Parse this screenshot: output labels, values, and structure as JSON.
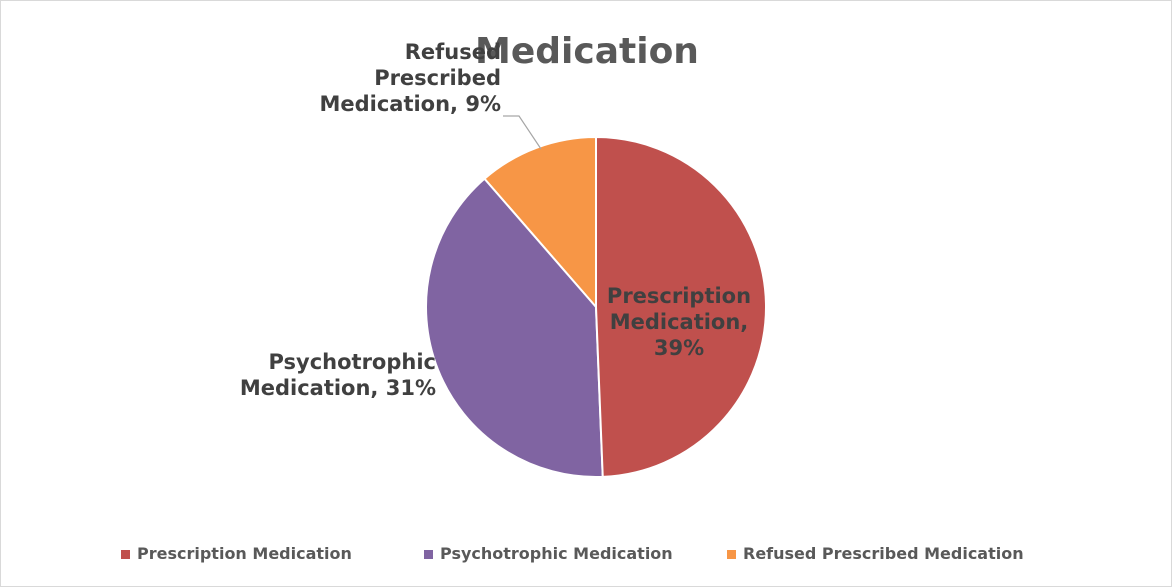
{
  "chart_data": {
    "type": "pie",
    "title": "Medication",
    "categories": [
      "Prescription Medication",
      "Psychotrophic Medication",
      "Refused Prescribed Medication"
    ],
    "values": [
      39,
      31,
      9
    ],
    "value_labels": [
      "Prescription Medication, 39%",
      "Psychotrophic Medication, 31%",
      "Refused Prescribed Medication, 9%"
    ],
    "colors": [
      "#c0504d",
      "#8064a2",
      "#f79646"
    ],
    "legend": "bottom"
  }
}
